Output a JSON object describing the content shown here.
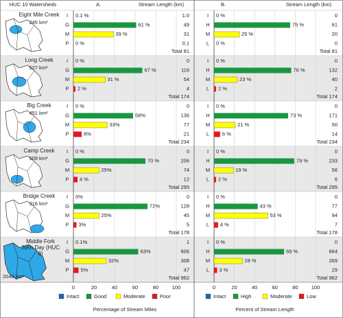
{
  "chart_data": {
    "type": "bar",
    "header": {
      "map_title": "HUC 10 Watersheds"
    },
    "total_text": "Total",
    "panels": [
      {
        "label": "A.",
        "column_title": "Stream Length (km)",
        "axis_title": "Percentage of Stream Miles",
        "classes": [
          "I",
          "G",
          "M",
          "P"
        ],
        "xlim": [
          0,
          100
        ],
        "xticks": [
          0,
          20,
          40,
          60,
          80,
          100
        ],
        "legend": [
          {
            "name": "Intact",
            "color": "#2166ac"
          },
          {
            "name": "Good",
            "color": "#1a9641"
          },
          {
            "name": "Moderate",
            "color": "#ffff00"
          },
          {
            "name": "Poor",
            "color": "#e31a1c"
          }
        ]
      },
      {
        "label": "B.",
        "column_title": "Stream Length (km)",
        "axis_title": "Percent of Stream Length",
        "classes": [
          "I",
          "H",
          "M",
          "L"
        ],
        "xlim": [
          0,
          100
        ],
        "xticks": [
          0,
          20,
          40,
          60,
          80,
          100
        ],
        "legend": [
          {
            "name": "Intact",
            "color": "#2166ac"
          },
          {
            "name": "High",
            "color": "#1a9641"
          },
          {
            "name": "Moderate",
            "color": "#ffff00"
          },
          {
            "name": "Low",
            "color": "#e31a1c"
          }
        ]
      }
    ],
    "watersheds": [
      {
        "name": "Eight Mile Creek",
        "area": "245 km²",
        "panels": [
          {
            "values": [
              0.1,
              61,
              39,
              0
            ],
            "value_labels": [
              "0.1 %",
              "61 %",
              "39 %",
              "0 %"
            ],
            "lengths": [
              "1.0",
              "49",
              "31",
              "0.1"
            ],
            "total": 81
          },
          {
            "values": [
              0,
              75,
              25,
              0
            ],
            "value_labels": [
              "0 %",
              "75 %",
              "25 %",
              "0 %"
            ],
            "lengths": [
              "0",
              "61",
              "20",
              "0"
            ],
            "total": 81
          }
        ]
      },
      {
        "name": "Long Creek",
        "area": "527 km²",
        "panels": [
          {
            "values": [
              0,
              67,
              31,
              2
            ],
            "value_labels": [
              "0 %",
              "67 %",
              "31 %",
              "2 %"
            ],
            "lengths": [
              "0",
              "116",
              "54",
              "4"
            ],
            "total": 174
          },
          {
            "values": [
              0,
              76,
              23,
              2
            ],
            "value_labels": [
              "0 %",
              "76 %",
              "23 %",
              "2 %"
            ],
            "lengths": [
              "0",
              "132",
              "40",
              "2"
            ],
            "total": 174
          }
        ]
      },
      {
        "name": "Big Creek",
        "area": "451 km²",
        "panels": [
          {
            "values": [
              0,
              58,
              33,
              8
            ],
            "value_labels": [
              "0 %",
              "58%",
              "33%",
              "8%"
            ],
            "lengths": [
              "0",
              "136",
              "77",
              "21"
            ],
            "total": 234
          },
          {
            "values": [
              0,
              73,
              21,
              6
            ],
            "value_labels": [
              "0 %",
              "73 %",
              "21 %",
              "6 %"
            ],
            "lengths": [
              "0",
              "171",
              "50",
              "14"
            ],
            "total": 234
          }
        ]
      },
      {
        "name": "Camp Creek",
        "area": "509 km²",
        "panels": [
          {
            "values": [
              0,
              70,
              25,
              4
            ],
            "value_labels": [
              "0 %",
              "70 %",
              "25%",
              "4 %"
            ],
            "lengths": [
              "0",
              "206",
              "74",
              "12"
            ],
            "total": 295
          },
          {
            "values": [
              0,
              79,
              19,
              2
            ],
            "value_labels": [
              "0 %",
              "79 %",
              "19 %",
              "2 %"
            ],
            "lengths": [
              "0",
              "233",
              "56",
              "6"
            ],
            "total": 295
          }
        ]
      },
      {
        "name": "Bridge Creek",
        "area": "316 km²",
        "panels": [
          {
            "values": [
              0,
              72,
              25,
              3
            ],
            "value_labels": [
              "0%",
              "72%",
              "25%",
              "3%"
            ],
            "lengths": [
              "0",
              "128",
              "45",
              "5"
            ],
            "total": 178
          },
          {
            "values": [
              0,
              43,
              53,
              4
            ],
            "value_labels": [
              "0 %",
              "43 %",
              "53 %",
              "4 %"
            ],
            "lengths": [
              "0",
              "77",
              "94",
              "7"
            ],
            "total": 178
          }
        ]
      },
      {
        "name": "Middle Fork John Day (HUC 8)",
        "area": "2048 km²",
        "panels": [
          {
            "values": [
              0.1,
              63,
              32,
              5
            ],
            "value_labels": [
              "0.1%",
              "63%",
              "32%",
              "5%"
            ],
            "lengths": [
              "1",
              "606",
              "308",
              "47"
            ],
            "total": 962
          },
          {
            "values": [
              0,
              69,
              28,
              3
            ],
            "value_labels": [
              "0 %",
              "69 %",
              "28 %",
              "3 %"
            ],
            "lengths": [
              "0",
              "664",
              "269",
              "29"
            ],
            "total": 962
          }
        ]
      }
    ]
  }
}
